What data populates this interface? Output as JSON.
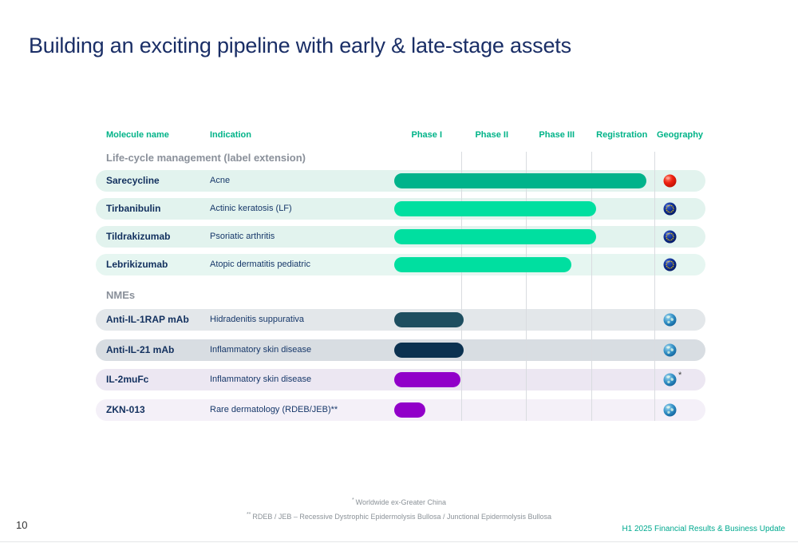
{
  "slide": {
    "title": "Building an exciting pipeline with early & late-stage assets",
    "page_number": "10",
    "footer": "H1 2025 Financial Results & Business Update",
    "footnotes": [
      {
        "marker": "*",
        "text": "Worldwide ex-Greater China"
      },
      {
        "marker": "**",
        "text": "RDEB / JEB – Recessive Dystrophic Epidermolysis Bullosa / Junctional Epidermolysis Bullosa"
      }
    ]
  },
  "colors": {
    "title_navy": "#1a2e66",
    "header_green": "#00b388",
    "footer_green": "#00a98f",
    "section_gray": "#8a909a",
    "molecule_navy": "#12305e",
    "divider_gray": "#d9dce0"
  },
  "table": {
    "headers": [
      "Molecule name",
      "Indication",
      "Phase I",
      "Phase II",
      "Phase III",
      "Registration",
      "Geography"
    ],
    "sections": [
      {
        "label": "Life-cycle management (label extension)",
        "rows": [
          {
            "molecule": "Sarecycline",
            "indication": "Acne",
            "bar": {
              "start": 0,
              "end": 3.88,
              "color": "#00b38b"
            },
            "row_bg": "#e2f3ee",
            "geo": {
              "type": "china",
              "note": ""
            }
          },
          {
            "molecule": "Tirbanibulin",
            "indication": "Actinic keratosis (LF)",
            "bar": {
              "start": 0,
              "end": 3.1,
              "color": "#00dfa0"
            },
            "row_bg": "#e2f3ee",
            "geo": {
              "type": "eu",
              "note": ""
            }
          },
          {
            "molecule": "Tildrakizumab",
            "indication": "Psoriatic arthritis",
            "bar": {
              "start": 0,
              "end": 3.1,
              "color": "#00dfa0"
            },
            "row_bg": "#e2f3ee",
            "geo": {
              "type": "eu",
              "note": ""
            }
          },
          {
            "molecule": "Lebrikizumab",
            "indication": "Atopic dermatitis pediatric",
            "bar": {
              "start": 0,
              "end": 2.72,
              "color": "#00dfa0"
            },
            "row_bg": "#e6f6f1",
            "geo": {
              "type": "eu",
              "note": ""
            }
          }
        ]
      },
      {
        "label": "NMEs",
        "rows": [
          {
            "molecule": "Anti-IL-1RAP mAb",
            "indication": "Hidradenitis suppurativa",
            "bar": {
              "start": 0,
              "end": 1.07,
              "color": "#1e4e60"
            },
            "row_bg": "#e3e7ea",
            "geo": {
              "type": "world",
              "note": ""
            }
          },
          {
            "molecule": "Anti-IL-21 mAb",
            "indication": "Inflammatory skin disease",
            "bar": {
              "start": 0,
              "end": 1.07,
              "color": "#0b3150"
            },
            "row_bg": "#d8dde2",
            "geo": {
              "type": "world",
              "note": ""
            }
          },
          {
            "molecule": "IL-2muFc",
            "indication": "Inflammatory skin disease",
            "bar": {
              "start": 0,
              "end": 1.02,
              "color": "#9100c9"
            },
            "row_bg": "#ece7f2",
            "geo": {
              "type": "world",
              "note": "*"
            }
          },
          {
            "molecule": "ZKN-013",
            "indication": "Rare dermatology (RDEB/JEB)**",
            "bar": {
              "start": 0,
              "end": 0.48,
              "color": "#9100c9"
            },
            "row_bg": "#f4f0f8",
            "geo": {
              "type": "world",
              "note": ""
            }
          }
        ]
      }
    ]
  },
  "chart_data": {
    "type": "bar",
    "subtype": "pipeline-gantt",
    "orientation": "horizontal",
    "title": "Building an exciting pipeline with early & late-stage assets",
    "x_axis": {
      "categories": [
        "Phase I",
        "Phase II",
        "Phase III",
        "Registration"
      ],
      "range": [
        0,
        4
      ],
      "grid": true
    },
    "legend": "none",
    "series": [
      {
        "name": "Sarecycline",
        "group": "Life-cycle management (label extension)",
        "indication": "Acne",
        "start": 0,
        "end": 3.88,
        "stage_reached": "Registration",
        "color": "#00b38b",
        "geography_icon": "china-flag"
      },
      {
        "name": "Tirbanibulin",
        "group": "Life-cycle management (label extension)",
        "indication": "Actinic keratosis (LF)",
        "start": 0,
        "end": 3.1,
        "stage_reached": "Phase III",
        "color": "#00dfa0",
        "geography_icon": "eu-flag"
      },
      {
        "name": "Tildrakizumab",
        "group": "Life-cycle management (label extension)",
        "indication": "Psoriatic arthritis",
        "start": 0,
        "end": 3.1,
        "stage_reached": "Phase III",
        "color": "#00dfa0",
        "geography_icon": "eu-flag"
      },
      {
        "name": "Lebrikizumab",
        "group": "Life-cycle management (label extension)",
        "indication": "Atopic dermatitis pediatric",
        "start": 0,
        "end": 2.72,
        "stage_reached": "Phase III (partial)",
        "color": "#00dfa0",
        "geography_icon": "eu-flag"
      },
      {
        "name": "Anti-IL-1RAP mAb",
        "group": "NMEs",
        "indication": "Hidradenitis suppurativa",
        "start": 0,
        "end": 1.07,
        "stage_reached": "Phase I",
        "color": "#1e4e60",
        "geography_icon": "globe"
      },
      {
        "name": "Anti-IL-21 mAb",
        "group": "NMEs",
        "indication": "Inflammatory skin disease",
        "start": 0,
        "end": 1.07,
        "stage_reached": "Phase I",
        "color": "#0b3150",
        "geography_icon": "globe"
      },
      {
        "name": "IL-2muFc",
        "group": "NMEs",
        "indication": "Inflammatory skin disease",
        "start": 0,
        "end": 1.02,
        "stage_reached": "Phase I",
        "color": "#9100c9",
        "geography_icon": "globe *"
      },
      {
        "name": "ZKN-013",
        "group": "NMEs",
        "indication": "Rare dermatology (RDEB/JEB)**",
        "start": 0,
        "end": 0.48,
        "stage_reached": "Phase I (partial)",
        "color": "#9100c9",
        "geography_icon": "globe"
      }
    ]
  }
}
